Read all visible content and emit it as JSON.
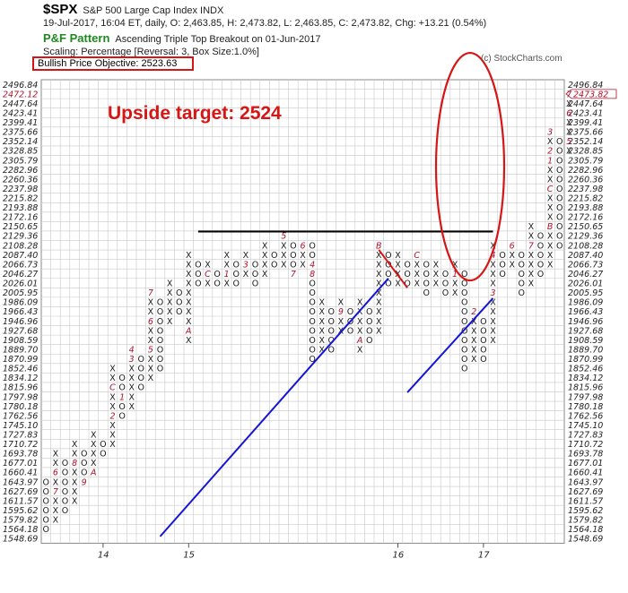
{
  "header": {
    "symbol": "$SPX",
    "name": "S&P 500 Large Cap Index",
    "exchange": "INDX",
    "quote_line": "19-Jul-2017, 16:04 ET, daily, O: 2,463.85, H: 2,473.82, L: 2,463.85, C: 2,473.82, Chg: +13.21 (0.54%)",
    "pattern_label": "P&F Pattern",
    "pattern_text": "Ascending Triple Top Breakout on 01-Jun-2017",
    "scaling_line": "Scaling: Percentage [Reversal: 3, Box Size:1.0%]",
    "objective": "Bullish Price Objective: 2523.63",
    "copyright": "(c) StockCharts.com",
    "annotation": "Upside target: 2524"
  },
  "colors": {
    "x_mark": "#1a1a1a",
    "o_mark": "#1a1a1a",
    "month_marker": "#b0102a",
    "grid": "#c9c9c9",
    "annotation": "#d61515",
    "trendline": "#1515d6",
    "resistance": "#000000"
  },
  "chart_data": {
    "type": "point-and-figure",
    "title": "$SPX S&P 500 Large Cap Index INDX",
    "reversal": 3,
    "box_size_percent": 1.0,
    "current_price": 2473.82,
    "current_price_label": "2473.82",
    "price_objective": 2523.63,
    "y_axis_prices": [
      "2496.84",
      "2472.12",
      "2447.64",
      "2423.41",
      "2399.41",
      "2375.66",
      "2352.14",
      "2328.85",
      "2305.79",
      "2282.96",
      "2260.36",
      "2237.98",
      "2215.82",
      "2193.88",
      "2172.16",
      "2150.65",
      "2129.36",
      "2108.28",
      "2087.40",
      "2066.73",
      "2046.27",
      "2026.01",
      "2005.95",
      "1986.09",
      "1966.43",
      "1946.96",
      "1927.68",
      "1908.59",
      "1889.70",
      "1870.99",
      "1852.46",
      "1834.12",
      "1815.96",
      "1797.98",
      "1780.18",
      "1762.56",
      "1745.10",
      "1727.83",
      "1710.72",
      "1693.78",
      "1677.01",
      "1660.41",
      "1643.97",
      "1627.69",
      "1611.57",
      "1595.62",
      "1579.82",
      "1564.18",
      "1548.69"
    ],
    "year_labels": [
      {
        "label": "14",
        "col": 6
      },
      {
        "label": "15",
        "col": 15
      },
      {
        "label": "16",
        "col": 37
      },
      {
        "label": "17",
        "col": 46
      }
    ],
    "columns": [
      {
        "type": "O",
        "top": 1643.97,
        "bottom": 1564.18,
        "markers": []
      },
      {
        "type": "X",
        "top": 1693.78,
        "bottom": 1579.82,
        "markers": [
          {
            "price": 1660.41,
            "label": "6"
          },
          {
            "price": 1627.69,
            "label": "7"
          }
        ]
      },
      {
        "type": "O",
        "top": 1677.01,
        "bottom": 1595.62,
        "markers": []
      },
      {
        "type": "X",
        "top": 1710.72,
        "bottom": 1611.57,
        "markers": [
          {
            "price": 1677.01,
            "label": "8"
          }
        ]
      },
      {
        "type": "O",
        "top": 1693.78,
        "bottom": 1643.97,
        "markers": [
          {
            "price": 1643.97,
            "label": "9"
          }
        ]
      },
      {
        "type": "X",
        "top": 1727.83,
        "bottom": 1660.41,
        "markers": [
          {
            "price": 1660.41,
            "label": "A"
          }
        ]
      },
      {
        "type": "O",
        "top": 1710.72,
        "bottom": 1693.78,
        "markers": []
      },
      {
        "type": "X",
        "top": 1852.46,
        "bottom": 1710.72,
        "markers": [
          {
            "price": 1815.96,
            "label": "C"
          },
          {
            "price": 1762.56,
            "label": "2"
          }
        ]
      },
      {
        "type": "O",
        "top": 1834.12,
        "bottom": 1762.56,
        "markers": [
          {
            "price": 1797.98,
            "label": "1"
          }
        ]
      },
      {
        "type": "X",
        "top": 1889.7,
        "bottom": 1780.18,
        "markers": [
          {
            "price": 1889.7,
            "label": "4"
          },
          {
            "price": 1870.99,
            "label": "3"
          }
        ]
      },
      {
        "type": "O",
        "top": 1870.99,
        "bottom": 1815.96,
        "markers": []
      },
      {
        "type": "X",
        "top": 2005.95,
        "bottom": 1834.12,
        "markers": [
          {
            "price": 2005.95,
            "label": "7"
          },
          {
            "price": 1946.96,
            "label": "6"
          },
          {
            "price": 1889.7,
            "label": "5"
          }
        ]
      },
      {
        "type": "O",
        "top": 1986.09,
        "bottom": 1852.46,
        "markers": []
      },
      {
        "type": "X",
        "top": 2026.01,
        "bottom": 1946.96,
        "markers": []
      },
      {
        "type": "O",
        "top": 2005.95,
        "bottom": 1966.43,
        "markers": [
          {
            "price": 2026.01,
            "label": "9"
          }
        ]
      },
      {
        "type": "X",
        "top": 2087.4,
        "bottom": 1908.59,
        "markers": [
          {
            "price": 1927.68,
            "label": "A"
          }
        ]
      },
      {
        "type": "O",
        "top": 2066.73,
        "bottom": 2026.01,
        "markers": []
      },
      {
        "type": "X",
        "top": 2066.73,
        "bottom": 2026.01,
        "markers": [
          {
            "price": 2046.27,
            "label": "C"
          }
        ]
      },
      {
        "type": "O",
        "top": 2046.27,
        "bottom": 2026.01,
        "markers": []
      },
      {
        "type": "X",
        "top": 2087.4,
        "bottom": 2026.01,
        "markers": [
          {
            "price": 2046.27,
            "label": "1"
          },
          {
            "price": 2005.95,
            "label": "2"
          }
        ]
      },
      {
        "type": "O",
        "top": 2066.73,
        "bottom": 2026.01,
        "markers": []
      },
      {
        "type": "X",
        "top": 2087.4,
        "bottom": 2046.27,
        "markers": [
          {
            "price": 2066.73,
            "label": "3"
          }
        ]
      },
      {
        "type": "O",
        "top": 2066.73,
        "bottom": 2026.01,
        "markers": []
      },
      {
        "type": "X",
        "top": 2108.28,
        "bottom": 2046.27,
        "markers": []
      },
      {
        "type": "O",
        "top": 2087.4,
        "bottom": 2066.73,
        "markers": []
      },
      {
        "type": "X",
        "top": 2129.36,
        "bottom": 2066.73,
        "markers": [
          {
            "price": 2129.36,
            "label": "5"
          }
        ]
      },
      {
        "type": "O",
        "top": 2108.28,
        "bottom": 2046.27,
        "markers": [
          {
            "price": 2046.27,
            "label": "7"
          }
        ]
      },
      {
        "type": "X",
        "top": 2108.28,
        "bottom": 2066.73,
        "markers": [
          {
            "price": 2108.28,
            "label": "6"
          }
        ]
      },
      {
        "type": "O",
        "top": 2108.28,
        "bottom": 1870.99,
        "markers": [
          {
            "price": 2066.73,
            "label": "4"
          },
          {
            "price": 2046.27,
            "label": "8"
          }
        ]
      },
      {
        "type": "X",
        "top": 1986.09,
        "bottom": 1889.7,
        "markers": []
      },
      {
        "type": "O",
        "top": 1966.43,
        "bottom": 1889.7,
        "markers": []
      },
      {
        "type": "X",
        "top": 1986.09,
        "bottom": 1927.68,
        "markers": [
          {
            "price": 1966.43,
            "label": "9"
          }
        ]
      },
      {
        "type": "O",
        "top": 1966.43,
        "bottom": 1927.68,
        "markers": []
      },
      {
        "type": "X",
        "top": 1986.09,
        "bottom": 1889.7,
        "markers": [
          {
            "price": 1908.59,
            "label": "A"
          }
        ]
      },
      {
        "type": "O",
        "top": 1966.43,
        "bottom": 1908.59,
        "markers": []
      },
      {
        "type": "X",
        "top": 2108.28,
        "bottom": 1927.68,
        "markers": [
          {
            "price": 2108.28,
            "label": "B"
          }
        ]
      },
      {
        "type": "O",
        "top": 2087.4,
        "bottom": 2026.01,
        "markers": []
      },
      {
        "type": "X",
        "top": 2087.4,
        "bottom": 2026.01,
        "markers": []
      },
      {
        "type": "O",
        "top": 2066.73,
        "bottom": 2026.01,
        "markers": []
      },
      {
        "type": "X",
        "top": 2087.4,
        "bottom": 2026.01,
        "markers": [
          {
            "price": 2087.4,
            "label": "C"
          }
        ]
      },
      {
        "type": "O",
        "top": 2066.73,
        "bottom": 2005.95,
        "markers": []
      },
      {
        "type": "X",
        "top": 2066.73,
        "bottom": 2026.01,
        "markers": []
      },
      {
        "type": "O",
        "top": 2046.27,
        "bottom": 2005.95,
        "markers": []
      },
      {
        "type": "X",
        "top": 2066.73,
        "bottom": 2005.95,
        "markers": [
          {
            "price": 2046.27,
            "label": "1"
          }
        ]
      },
      {
        "type": "O",
        "top": 2046.27,
        "bottom": 1852.46,
        "markers": []
      },
      {
        "type": "X",
        "top": 1966.43,
        "bottom": 1870.99,
        "markers": [
          {
            "price": 1966.43,
            "label": "2"
          }
        ]
      },
      {
        "type": "O",
        "top": 1946.96,
        "bottom": 1870.99,
        "markers": []
      },
      {
        "type": "X",
        "top": 2108.28,
        "bottom": 1908.59,
        "markers": [
          {
            "price": 2087.4,
            "label": "4"
          },
          {
            "price": 2005.95,
            "label": "3"
          }
        ]
      },
      {
        "type": "O",
        "top": 2087.4,
        "bottom": 2046.27,
        "markers": []
      },
      {
        "type": "X",
        "top": 2108.28,
        "bottom": 2066.73,
        "markers": [
          {
            "price": 2108.28,
            "label": "6"
          }
        ]
      },
      {
        "type": "O",
        "top": 2087.4,
        "bottom": 2005.95,
        "markers": []
      },
      {
        "type": "X",
        "top": 2150.65,
        "bottom": 2026.01,
        "markers": [
          {
            "price": 2108.28,
            "label": "7"
          }
        ]
      },
      {
        "type": "O",
        "top": 2129.36,
        "bottom": 2046.27,
        "markers": []
      },
      {
        "type": "X",
        "top": 2375.66,
        "bottom": 2066.73,
        "markers": [
          {
            "price": 2375.66,
            "label": "3"
          },
          {
            "price": 2328.85,
            "label": "2"
          },
          {
            "price": 2305.79,
            "label": "1"
          },
          {
            "price": 2237.98,
            "label": "C"
          },
          {
            "price": 2150.65,
            "label": "B"
          }
        ]
      },
      {
        "type": "O",
        "top": 2352.14,
        "bottom": 2108.28,
        "markers": []
      },
      {
        "type": "X",
        "top": 2472.12,
        "bottom": 2328.85,
        "markers": [
          {
            "price": 2472.12,
            "label": "7"
          },
          {
            "price": 2423.41,
            "label": "6"
          },
          {
            "price": 2352.14,
            "label": "5"
          }
        ]
      }
    ],
    "annotations": [
      {
        "kind": "resistance_line",
        "price": 2139.0,
        "from_col": 16,
        "to_col": 47
      },
      {
        "kind": "trendline",
        "from_col": 12,
        "from_price": 1552.0,
        "to_col": 36,
        "to_price": 2036.0
      },
      {
        "kind": "trendline",
        "from_col": 38,
        "from_price": 1806.0,
        "to_col": 47,
        "to_price": 1994.0
      },
      {
        "kind": "short_red_line",
        "from_col": 35,
        "from_price": 2098.0,
        "to_col": 38,
        "to_price": 2016.0
      },
      {
        "kind": "ellipse_highlight",
        "center_col": 44.5,
        "center_price": 2290.0
      }
    ]
  }
}
